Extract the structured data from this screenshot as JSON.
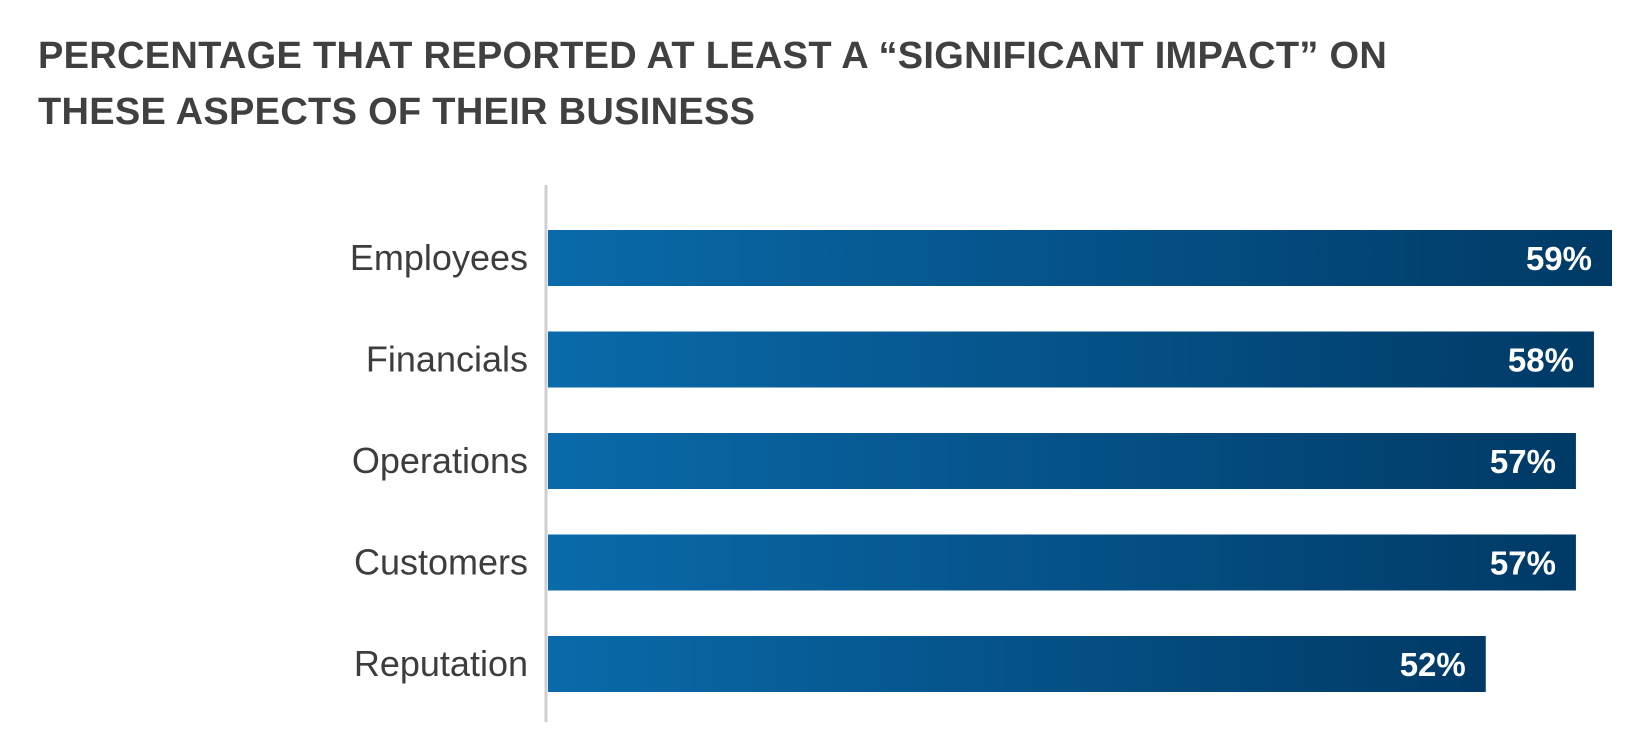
{
  "title": "PERCENTAGE THAT REPORTED AT LEAST A “SIGNIFICANT IMPACT” ON THESE ASPECTS OF THEIR BUSINESS",
  "chart_data": {
    "type": "bar",
    "orientation": "horizontal",
    "title": "PERCENTAGE THAT REPORTED AT LEAST A “SIGNIFICANT IMPACT” ON THESE ASPECTS OF THEIR BUSINESS",
    "categories": [
      "Employees",
      "Financials",
      "Operations",
      "Customers",
      "Reputation"
    ],
    "values": [
      59,
      58,
      57,
      57,
      52
    ],
    "value_labels": [
      "59%",
      "58%",
      "57%",
      "57%",
      "52%"
    ],
    "value_unit": "%",
    "xlabel": "",
    "ylabel": "",
    "xlim": [
      0,
      59
    ],
    "grid": false,
    "legend": "none",
    "colors": {
      "bar_start": "#0a6aaa",
      "bar_end": "#003a66",
      "axis_line": "#cfcfcf",
      "title": "#404041",
      "category_text": "#3d3d3d",
      "value_text": "#ffffff"
    }
  }
}
